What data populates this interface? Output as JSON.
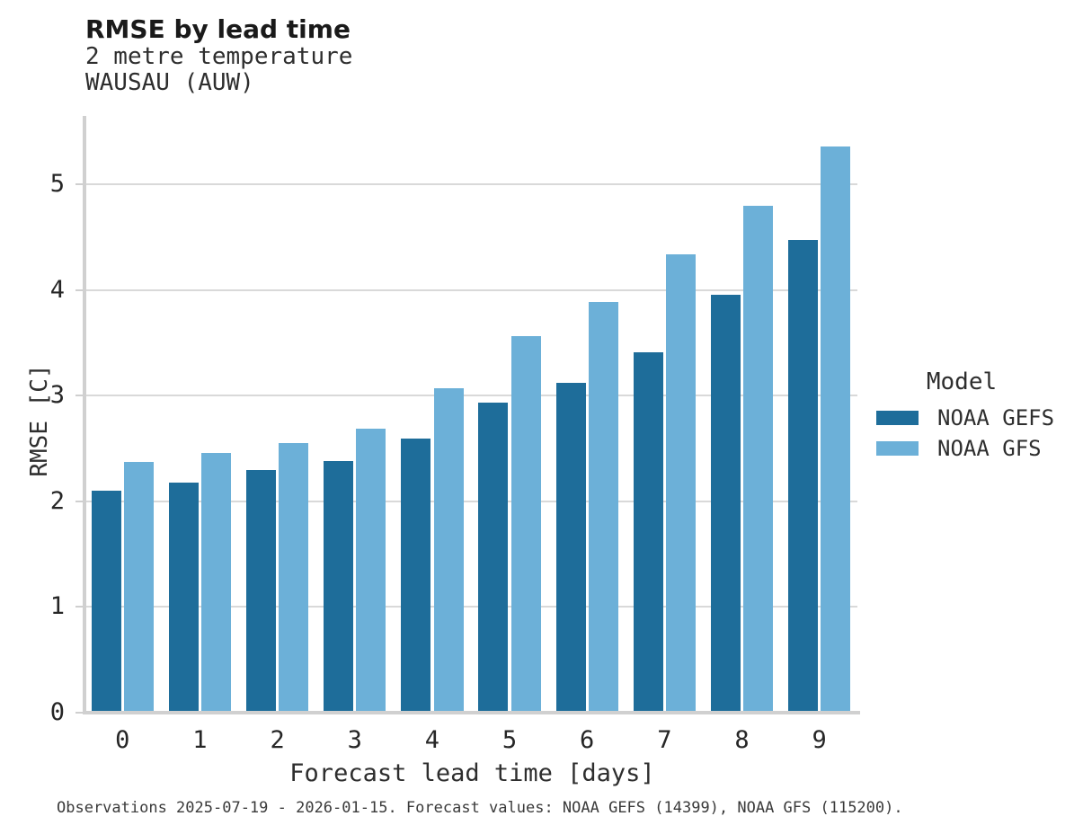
{
  "footnote": "Observations 2025-07-19 - 2026-01-15. Forecast values: NOAA GEFS (14399), NOAA GFS (115200).",
  "chart_data": {
    "type": "bar",
    "title": "RMSE by lead time",
    "subtitle": [
      "2 metre temperature",
      "WAUSAU (AUW)"
    ],
    "categories": [
      "0",
      "1",
      "2",
      "3",
      "4",
      "5",
      "6",
      "7",
      "8",
      "9"
    ],
    "series": [
      {
        "name": "NOAA GEFS",
        "color": "#1e6d9a",
        "values": [
          2.1,
          2.18,
          2.3,
          2.38,
          2.59,
          2.93,
          3.12,
          3.41,
          3.95,
          4.47
        ]
      },
      {
        "name": "NOAA GFS",
        "color": "#6cb0d8",
        "values": [
          2.37,
          2.46,
          2.55,
          2.69,
          3.07,
          3.56,
          3.89,
          4.34,
          4.8,
          5.36
        ]
      }
    ],
    "xlabel": "Forecast lead time [days]",
    "ylabel": "RMSE [C]",
    "ylim": [
      0,
      5.65
    ],
    "yticks": [
      0,
      1,
      2,
      3,
      4,
      5
    ],
    "grid": "horizontal",
    "legend_title": "Model",
    "legend_position": "right",
    "colors": {
      "grid": "#d9d9d9",
      "spine": "#d0d0d0",
      "text": "#2e2e2e"
    }
  }
}
